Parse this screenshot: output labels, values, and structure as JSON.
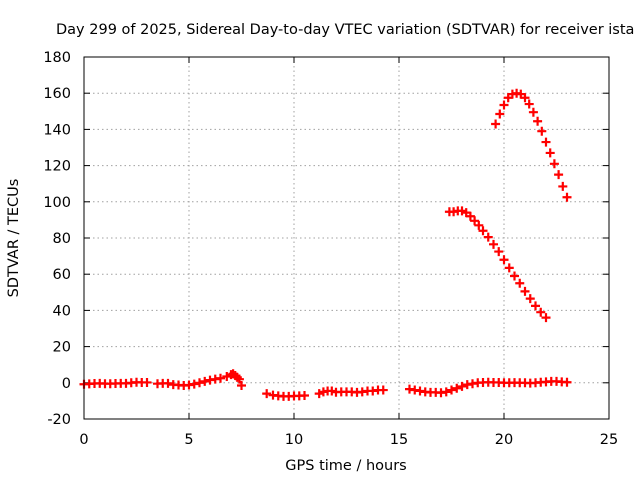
{
  "chart_data": {
    "type": "scatter",
    "title": "Day 299 of 2025, Sidereal Day-to-day VTEC variation (SDTVAR) for receiver ista",
    "xlabel": "GPS time / hours",
    "ylabel": "SDTVAR / TECUs",
    "xlim": [
      0,
      25
    ],
    "ylim": [
      -20,
      180
    ],
    "xticks": [
      0,
      5,
      10,
      15,
      20,
      25
    ],
    "yticks": [
      -20,
      0,
      20,
      40,
      60,
      80,
      100,
      120,
      140,
      160,
      180
    ],
    "grid": true,
    "marker": "plus",
    "color": "#ff0000",
    "series": [
      {
        "x": [
          0.0,
          0.25,
          0.5,
          0.75,
          1.0,
          1.25,
          1.5,
          1.75,
          2.0,
          2.25,
          2.5,
          2.75,
          3.0
        ],
        "y": [
          -0.8,
          -0.6,
          -0.4,
          -0.3,
          -0.5,
          -0.5,
          -0.4,
          -0.3,
          -0.3,
          0.0,
          0.3,
          0.2,
          0.2
        ]
      },
      {
        "x": [
          3.5,
          3.75,
          4.0,
          4.25,
          4.5,
          4.75,
          5.0,
          5.25,
          5.5,
          5.75,
          6.0,
          6.25,
          6.5
        ],
        "y": [
          -0.5,
          -0.3,
          -0.3,
          -1.0,
          -1.2,
          -1.5,
          -1.2,
          -0.7,
          0.0,
          0.8,
          1.5,
          2.0,
          2.5
        ]
      },
      {
        "x": [
          6.8,
          7.0,
          7.1,
          7.2,
          7.3,
          7.4,
          7.5
        ],
        "y": [
          3.5,
          4.5,
          5.0,
          4.0,
          3.0,
          2.0,
          -1.5
        ]
      },
      {
        "x": [
          8.7,
          9.0,
          9.25,
          9.5,
          9.75,
          10.0,
          10.25,
          10.5
        ],
        "y": [
          -6.0,
          -6.8,
          -7.2,
          -7.5,
          -7.5,
          -7.3,
          -7.2,
          -7.0
        ]
      },
      {
        "x": [
          11.2,
          11.4,
          11.6,
          11.8,
          12.0,
          12.25,
          12.5,
          12.75,
          13.0,
          13.25,
          13.5,
          13.75,
          14.0,
          14.25
        ],
        "y": [
          -6.0,
          -5.0,
          -4.5,
          -4.5,
          -5.2,
          -5.0,
          -5.0,
          -5.0,
          -5.3,
          -5.0,
          -4.5,
          -4.5,
          -4.0,
          -4.0
        ]
      },
      {
        "x": [
          15.5,
          15.75,
          16.0,
          16.25,
          16.5,
          16.75,
          17.0,
          17.25,
          17.5,
          17.75,
          18.0,
          18.25,
          18.5,
          18.75,
          19.0,
          19.25,
          19.5,
          19.75,
          20.0,
          20.25,
          20.5,
          20.75,
          21.0,
          21.25,
          21.5
        ],
        "y": [
          -3.5,
          -4.0,
          -4.5,
          -5.0,
          -5.3,
          -5.3,
          -5.5,
          -5.0,
          -4.0,
          -3.0,
          -2.0,
          -1.0,
          -0.5,
          0.0,
          0.2,
          0.3,
          0.2,
          0.2,
          0.0,
          0.0,
          0.1,
          0.0,
          0.0,
          -0.2,
          0.0
        ]
      },
      {
        "x": [
          21.75,
          22.0,
          22.25,
          22.5,
          22.75,
          23.0
        ],
        "y": [
          0.3,
          0.5,
          0.8,
          0.8,
          0.5,
          0.3
        ]
      },
      {
        "x": [
          17.4,
          17.6,
          17.8,
          18.0,
          18.2,
          18.4,
          18.6,
          18.8,
          19.0,
          19.25,
          19.5,
          19.75,
          20.0,
          20.25,
          20.5,
          20.75,
          21.0,
          21.25,
          21.5,
          21.75,
          22.0
        ],
        "y": [
          94.5,
          94.5,
          95.0,
          95.0,
          94.0,
          92.0,
          89.5,
          87.0,
          84.0,
          80.5,
          76.5,
          72.5,
          68.0,
          63.5,
          59.0,
          55.0,
          50.5,
          46.5,
          42.5,
          39.0,
          36.0
        ]
      },
      {
        "x": [
          19.6,
          19.8,
          20.0,
          20.2,
          20.4,
          20.6,
          20.8,
          21.0,
          21.2,
          21.4,
          21.6,
          21.8,
          22.0,
          22.2,
          22.4,
          22.6,
          22.8,
          23.0
        ],
        "y": [
          143.0,
          148.5,
          153.5,
          157.5,
          159.5,
          160.0,
          159.5,
          157.5,
          154.0,
          149.5,
          144.5,
          139.0,
          133.0,
          127.0,
          121.0,
          115.0,
          108.5,
          102.5
        ]
      }
    ]
  }
}
